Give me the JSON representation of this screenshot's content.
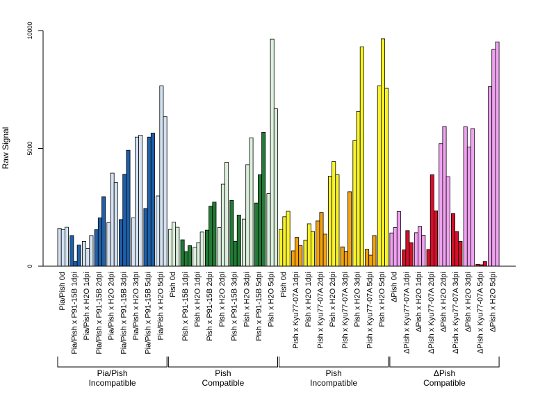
{
  "chart_data": {
    "type": "bar",
    "ylabel": "Raw Signal",
    "ylim": [
      0,
      10000
    ],
    "yticks": [
      0,
      5000,
      10000
    ],
    "categories": [
      "Pia/Pish 0d",
      "Pia/Pish x P91-15B 1dpi",
      "Pia/Pish x H2O 1dpi",
      "Pia/Pish x P91-15B 2dpi",
      "Pia/Pish x H2O 2dpi",
      "Pia/Pish x P91-15B 3dpi",
      "Pia/Pish x H2O 3dpi",
      "Pia/Pish x P91-15B 5dpi",
      "Pia/Pish x H2O 5dpi",
      "Pish 0d",
      "Pish x P91-15B 1dpi",
      "Pish x H2O 1dpi",
      "Pish x P91-15B 2dpi",
      "Pish x H2O 2dpi",
      "Pish x P91-15B 3dpi",
      "Pish x H2O 3dpi",
      "Pish x P91-15B 5dpi",
      "Pish x H2O 5dpi",
      "Pish 0d",
      "Pish x Kyu77-07A 1dpi",
      "Pish x H2O 1dpi",
      "Pish x Kyu77-07A 2dpi",
      "Pish x H2O 2dpi",
      "Pish x Kyu77-07A 3dpi",
      "Pish x H2O 3dpi",
      "Pish x Kyu77-07A 5dpi",
      "Pish x H2O 5dpi",
      "ΔPish 0d",
      "ΔPish x Kyu77-07A 1dpi",
      "ΔPish x H2O 1dpi",
      "ΔPish x Kyu77-07A 2dpi",
      "ΔPish x H2O 2dpi",
      "ΔPish x Kyu77-07A 3dpi",
      "ΔPish x H2O 3dpi",
      "ΔPish x Kyu77-07A 5dpi",
      "ΔPish x H2O 5dpi"
    ],
    "replicates_per_category": 3,
    "values": [
      [
        1600,
        1550,
        1650
      ],
      [
        1300,
        200,
        900
      ],
      [
        1050,
        750,
        1300
      ],
      [
        1550,
        2050,
        2950
      ],
      [
        1850,
        3950,
        3550
      ],
      [
        1980,
        3900,
        4920
      ],
      [
        2050,
        5480,
        5560
      ],
      [
        2450,
        5480,
        5650
      ],
      [
        2980,
        7650,
        6350
      ],
      [
        1560,
        1870,
        1650
      ],
      [
        1120,
        620,
        870
      ],
      [
        800,
        1000,
        1450
      ],
      [
        1530,
        2550,
        2720
      ],
      [
        1640,
        3480,
        4410
      ],
      [
        2790,
        1050,
        2170
      ],
      [
        2000,
        4310,
        5450
      ],
      [
        2680,
        3880,
        5680
      ],
      [
        3080,
        9640,
        6680
      ],
      [
        1560,
        2100,
        2330
      ],
      [
        650,
        1220,
        870
      ],
      [
        1110,
        1800,
        1470
      ],
      [
        1920,
        2280,
        1360
      ],
      [
        3820,
        4440,
        3880
      ],
      [
        820,
        630,
        3160
      ],
      [
        5330,
        6570,
        9310
      ],
      [
        720,
        470,
        1300
      ],
      [
        7650,
        9650,
        7550
      ],
      [
        1410,
        1640,
        2320
      ],
      [
        690,
        1510,
        1000
      ],
      [
        1420,
        1690,
        1310
      ],
      [
        710,
        3880,
        2350
      ],
      [
        5200,
        5930,
        3800
      ],
      [
        2230,
        1470,
        1050
      ],
      [
        5920,
        5060,
        5840
      ],
      [
        80,
        60,
        200
      ],
      [
        7620,
        9200,
        9520
      ]
    ],
    "group_colors": [
      "#1f5fa8",
      "#227a35",
      "#f1a20e",
      "#d3102a"
    ],
    "light_colors": [
      "#d4e2f1",
      "#dcefdc",
      "#f8f22a",
      "#f0a2f0"
    ],
    "groups": [
      {
        "line1": "Pia/Pish",
        "line2": "Incompatible"
      },
      {
        "line1": "Pish",
        "line2": "Compatible"
      },
      {
        "line1": "Pish",
        "line2": "Incompatible"
      },
      {
        "line1": "ΔPish",
        "line2": "Compatible"
      }
    ]
  }
}
